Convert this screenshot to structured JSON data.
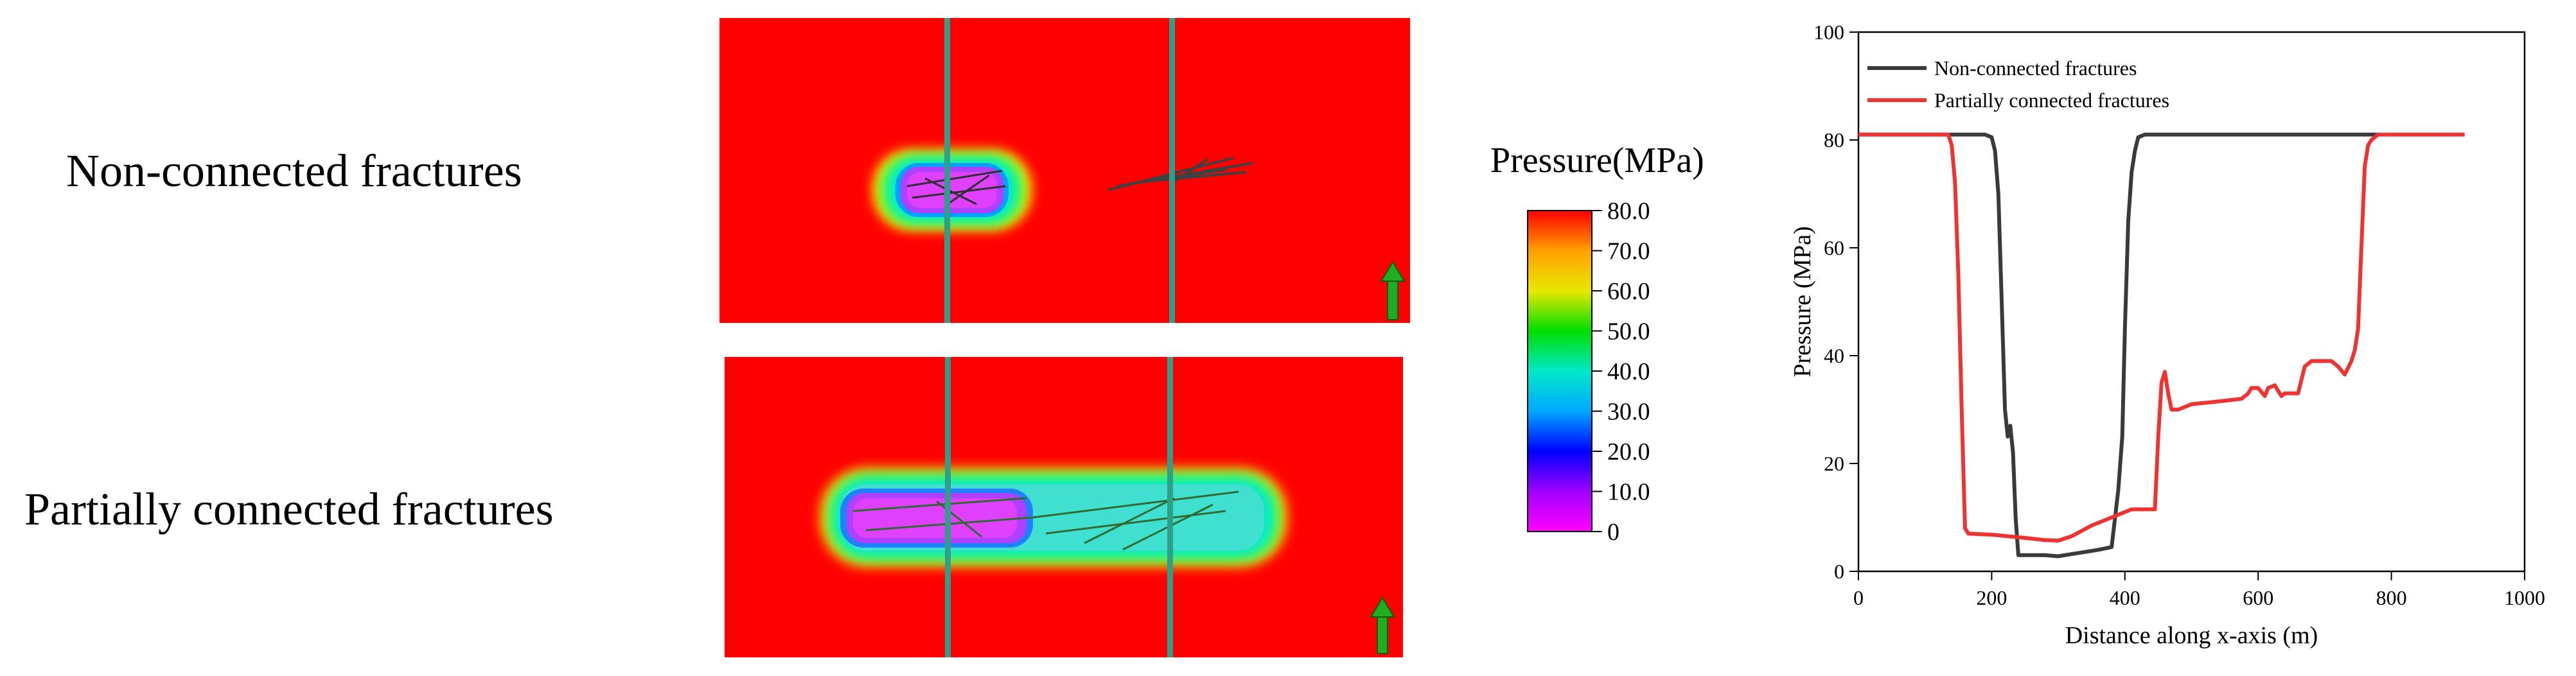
{
  "rows": [
    {
      "label": "Non-connected fractures"
    },
    {
      "label": "Partially connected fractures"
    }
  ],
  "colors": {
    "field": "#ff0000",
    "well": "#2f9f8a",
    "arrow": "#1fae1f",
    "non_connected": "#3a3a3a",
    "partially_connected": "#ee3333"
  },
  "colorbar": {
    "title": "Pressure(MPa)",
    "ticks": [
      "80.0",
      "70.0",
      "60.0",
      "50.0",
      "40.0",
      "30.0",
      "20.0",
      "10.0",
      "0"
    ],
    "colors": [
      "#ff0000",
      "#ffa000",
      "#e8e800",
      "#00dd00",
      "#00e8c8",
      "#00a8ff",
      "#0000ff",
      "#a000ff",
      "#ff00ff"
    ]
  },
  "chart_data": {
    "type": "line",
    "xlabel": "Distance along x-axis (m)",
    "ylabel": "Pressure (MPa)",
    "xlim": [
      0,
      1000
    ],
    "ylim": [
      0,
      100
    ],
    "xticks": [
      0,
      200,
      400,
      600,
      800,
      1000
    ],
    "yticks": [
      0,
      20,
      40,
      60,
      80,
      100
    ],
    "legend_position": "top-left",
    "grid": false,
    "series": [
      {
        "name": "Non-connected fractures",
        "color": "#3a3a3a",
        "x": [
          0,
          190,
          200,
          205,
          210,
          215,
          220,
          224,
          228,
          232,
          236,
          240,
          260,
          280,
          300,
          320,
          340,
          360,
          380,
          390,
          396,
          400,
          405,
          410,
          415,
          420,
          430,
          445,
          500,
          600,
          700,
          780
        ],
        "y": [
          81,
          81,
          80.5,
          78,
          70,
          50,
          30,
          25,
          27,
          22,
          10,
          3,
          3,
          3,
          2.8,
          3.2,
          3.6,
          4,
          4.5,
          15,
          25,
          45,
          65,
          74,
          78,
          80.5,
          81,
          81,
          81,
          81,
          81,
          81
        ]
      },
      {
        "name": "Partially connected fractures",
        "color": "#ee3333",
        "x": [
          0,
          135,
          140,
          145,
          150,
          155,
          160,
          165,
          200,
          250,
          280,
          300,
          320,
          350,
          380,
          400,
          410,
          430,
          445,
          450,
          455,
          460,
          465,
          470,
          480,
          500,
          540,
          575,
          585,
          590,
          600,
          610,
          615,
          625,
          635,
          640,
          650,
          660,
          670,
          680,
          690,
          700,
          710,
          720,
          730,
          740,
          745,
          750,
          755,
          760,
          765,
          770,
          780,
          800,
          910
        ],
        "y": [
          81,
          81,
          79,
          72,
          55,
          30,
          8,
          7,
          6.8,
          6.2,
          5.8,
          5.7,
          6.5,
          8.5,
          10,
          11,
          11.5,
          11.5,
          11.5,
          25,
          35,
          37,
          33,
          30,
          30,
          31,
          31.5,
          32,
          33,
          34,
          34,
          32.5,
          34,
          34.5,
          32.5,
          33,
          33,
          33,
          38,
          39,
          39,
          39,
          39,
          38,
          36.5,
          39,
          41,
          45,
          60,
          75,
          79,
          80,
          81,
          81,
          81
        ]
      }
    ]
  }
}
